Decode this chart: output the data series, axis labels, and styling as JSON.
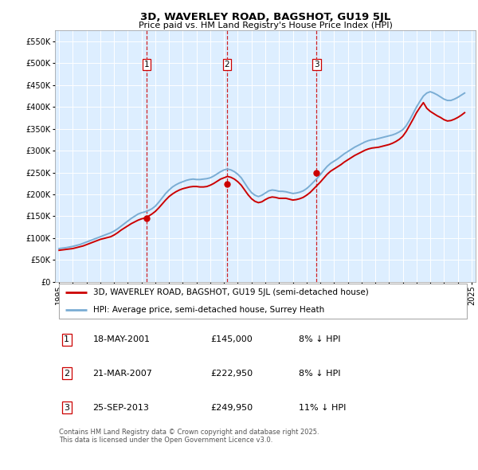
{
  "title": "3D, WAVERLEY ROAD, BAGSHOT, GU19 5JL",
  "subtitle": "Price paid vs. HM Land Registry's House Price Index (HPI)",
  "legend_property": "3D, WAVERLEY ROAD, BAGSHOT, GU19 5JL (semi-detached house)",
  "legend_hpi": "HPI: Average price, semi-detached house, Surrey Heath",
  "footer": "Contains HM Land Registry data © Crown copyright and database right 2025.\nThis data is licensed under the Open Government Licence v3.0.",
  "property_color": "#cc0000",
  "hpi_color": "#7aadd4",
  "background_color": "#ddeeff",
  "ylim": [
    0,
    575000
  ],
  "yticks": [
    0,
    50000,
    100000,
    150000,
    200000,
    250000,
    300000,
    350000,
    400000,
    450000,
    500000,
    550000
  ],
  "sale_dates": [
    2001.38,
    2007.22,
    2013.73
  ],
  "sale_prices": [
    145000,
    222950,
    249950
  ],
  "sale_labels": [
    "1",
    "2",
    "3"
  ],
  "table_rows": [
    [
      "1",
      "18-MAY-2001",
      "£145,000",
      "8% ↓ HPI"
    ],
    [
      "2",
      "21-MAR-2007",
      "£222,950",
      "8% ↓ HPI"
    ],
    [
      "3",
      "25-SEP-2013",
      "£249,950",
      "11% ↓ HPI"
    ]
  ],
  "hpi_x": [
    1995.0,
    1995.25,
    1995.5,
    1995.75,
    1996.0,
    1996.25,
    1996.5,
    1996.75,
    1997.0,
    1997.25,
    1997.5,
    1997.75,
    1998.0,
    1998.25,
    1998.5,
    1998.75,
    1999.0,
    1999.25,
    1999.5,
    1999.75,
    2000.0,
    2000.25,
    2000.5,
    2000.75,
    2001.0,
    2001.25,
    2001.5,
    2001.75,
    2002.0,
    2002.25,
    2002.5,
    2002.75,
    2003.0,
    2003.25,
    2003.5,
    2003.75,
    2004.0,
    2004.25,
    2004.5,
    2004.75,
    2005.0,
    2005.25,
    2005.5,
    2005.75,
    2006.0,
    2006.25,
    2006.5,
    2006.75,
    2007.0,
    2007.25,
    2007.5,
    2007.75,
    2008.0,
    2008.25,
    2008.5,
    2008.75,
    2009.0,
    2009.25,
    2009.5,
    2009.75,
    2010.0,
    2010.25,
    2010.5,
    2010.75,
    2011.0,
    2011.25,
    2011.5,
    2011.75,
    2012.0,
    2012.25,
    2012.5,
    2012.75,
    2013.0,
    2013.25,
    2013.5,
    2013.75,
    2014.0,
    2014.25,
    2014.5,
    2014.75,
    2015.0,
    2015.25,
    2015.5,
    2015.75,
    2016.0,
    2016.25,
    2016.5,
    2016.75,
    2017.0,
    2017.25,
    2017.5,
    2017.75,
    2018.0,
    2018.25,
    2018.5,
    2018.75,
    2019.0,
    2019.25,
    2019.5,
    2019.75,
    2020.0,
    2020.25,
    2020.5,
    2020.75,
    2021.0,
    2021.25,
    2021.5,
    2021.75,
    2022.0,
    2022.25,
    2022.5,
    2022.75,
    2023.0,
    2023.25,
    2023.5,
    2023.75,
    2024.0,
    2024.25,
    2024.5
  ],
  "hpi_y": [
    76000,
    77000,
    78000,
    79500,
    81000,
    83000,
    85000,
    88000,
    91000,
    94000,
    97000,
    100000,
    103000,
    106000,
    109000,
    112000,
    116000,
    121000,
    127000,
    133000,
    139000,
    145000,
    150000,
    155000,
    158000,
    160000,
    163000,
    167000,
    173000,
    182000,
    192000,
    202000,
    210000,
    217000,
    222000,
    226000,
    229000,
    232000,
    234000,
    235000,
    234000,
    234000,
    235000,
    236000,
    238000,
    242000,
    247000,
    252000,
    256000,
    258000,
    256000,
    252000,
    246000,
    238000,
    226000,
    214000,
    204000,
    198000,
    195000,
    198000,
    203000,
    208000,
    210000,
    209000,
    207000,
    207000,
    206000,
    204000,
    202000,
    203000,
    205000,
    208000,
    213000,
    220000,
    228000,
    236000,
    245000,
    255000,
    264000,
    271000,
    276000,
    281000,
    287000,
    293000,
    298000,
    303000,
    308000,
    312000,
    316000,
    320000,
    323000,
    325000,
    326000,
    328000,
    330000,
    332000,
    334000,
    336000,
    339000,
    343000,
    348000,
    357000,
    370000,
    385000,
    400000,
    413000,
    425000,
    432000,
    435000,
    432000,
    428000,
    423000,
    418000,
    415000,
    415000,
    418000,
    422000,
    427000,
    432000
  ],
  "prop_x": [
    1995.0,
    1995.25,
    1995.5,
    1995.75,
    1996.0,
    1996.25,
    1996.5,
    1996.75,
    1997.0,
    1997.25,
    1997.5,
    1997.75,
    1998.0,
    1998.25,
    1998.5,
    1998.75,
    1999.0,
    1999.25,
    1999.5,
    1999.75,
    2000.0,
    2000.25,
    2000.5,
    2000.75,
    2001.0,
    2001.25,
    2001.5,
    2001.75,
    2002.0,
    2002.25,
    2002.5,
    2002.75,
    2003.0,
    2003.25,
    2003.5,
    2003.75,
    2004.0,
    2004.25,
    2004.5,
    2004.75,
    2005.0,
    2005.25,
    2005.5,
    2005.75,
    2006.0,
    2006.25,
    2006.5,
    2006.75,
    2007.0,
    2007.25,
    2007.5,
    2007.75,
    2008.0,
    2008.25,
    2008.5,
    2008.75,
    2009.0,
    2009.25,
    2009.5,
    2009.75,
    2010.0,
    2010.25,
    2010.5,
    2010.75,
    2011.0,
    2011.25,
    2011.5,
    2011.75,
    2012.0,
    2012.25,
    2012.5,
    2012.75,
    2013.0,
    2013.25,
    2013.5,
    2013.75,
    2014.0,
    2014.25,
    2014.5,
    2014.75,
    2015.0,
    2015.25,
    2015.5,
    2015.75,
    2016.0,
    2016.25,
    2016.5,
    2016.75,
    2017.0,
    2017.25,
    2017.5,
    2017.75,
    2018.0,
    2018.25,
    2018.5,
    2018.75,
    2019.0,
    2019.25,
    2019.5,
    2019.75,
    2020.0,
    2020.25,
    2020.5,
    2020.75,
    2021.0,
    2021.25,
    2021.5,
    2021.75,
    2022.0,
    2022.25,
    2022.5,
    2022.75,
    2023.0,
    2023.25,
    2023.5,
    2023.75,
    2024.0,
    2024.25,
    2024.5
  ],
  "prop_y": [
    72000,
    73000,
    74000,
    75000,
    76000,
    78000,
    80000,
    82000,
    85000,
    88000,
    91000,
    94000,
    97000,
    99000,
    101000,
    103000,
    107000,
    112000,
    118000,
    123000,
    128000,
    133000,
    137000,
    141000,
    144000,
    146000,
    150000,
    155000,
    161000,
    169000,
    178000,
    187000,
    195000,
    201000,
    206000,
    210000,
    213000,
    215000,
    217000,
    218000,
    218000,
    217000,
    217000,
    218000,
    221000,
    225000,
    230000,
    235000,
    238000,
    241000,
    239000,
    235000,
    229000,
    221000,
    210000,
    199000,
    190000,
    184000,
    181000,
    183000,
    188000,
    192000,
    194000,
    193000,
    191000,
    191000,
    191000,
    189000,
    187000,
    188000,
    190000,
    193000,
    198000,
    204000,
    212000,
    220000,
    228000,
    237000,
    246000,
    253000,
    258000,
    263000,
    268000,
    274000,
    279000,
    284000,
    289000,
    293000,
    297000,
    301000,
    304000,
    306000,
    307000,
    308000,
    310000,
    312000,
    314000,
    317000,
    321000,
    326000,
    333000,
    344000,
    358000,
    372000,
    387000,
    399000,
    410000,
    397000,
    390000,
    385000,
    380000,
    376000,
    371000,
    368000,
    369000,
    372000,
    376000,
    381000,
    387000
  ]
}
